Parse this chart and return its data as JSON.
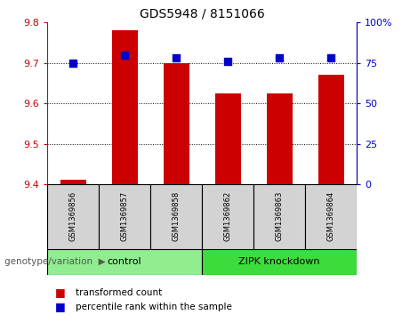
{
  "title": "GDS5948 / 8151066",
  "samples": [
    "GSM1369856",
    "GSM1369857",
    "GSM1369858",
    "GSM1369862",
    "GSM1369863",
    "GSM1369864"
  ],
  "red_values": [
    9.41,
    9.78,
    9.7,
    9.625,
    9.625,
    9.67
  ],
  "blue_values": [
    75,
    80,
    78,
    76,
    78,
    78
  ],
  "ylim_left": [
    9.4,
    9.8
  ],
  "ylim_right": [
    0,
    100
  ],
  "yticks_left": [
    9.4,
    9.5,
    9.6,
    9.7,
    9.8
  ],
  "yticks_right": [
    0,
    25,
    50,
    75,
    100
  ],
  "groups": [
    {
      "label": "control",
      "indices": [
        0,
        1,
        2
      ],
      "color": "#90ee90"
    },
    {
      "label": "ZIPK knockdown",
      "indices": [
        3,
        4,
        5
      ],
      "color": "#3ddc3d"
    }
  ],
  "bar_color": "#cc0000",
  "dot_color": "#0000cc",
  "bar_width": 0.5,
  "dot_size": 30,
  "tick_color_left": "#cc0000",
  "tick_color_right": "#0000cc",
  "sample_box_color": "#d3d3d3",
  "legend_entries": [
    "transformed count",
    "percentile rank within the sample"
  ],
  "legend_colors": [
    "#cc0000",
    "#0000cc"
  ],
  "genotype_label": "genotype/variation",
  "arrow_text": "▶",
  "grid_ticks": [
    9.5,
    9.6,
    9.7
  ],
  "ytick_labels_right": [
    "0",
    "25",
    "50",
    "75",
    "100%"
  ]
}
